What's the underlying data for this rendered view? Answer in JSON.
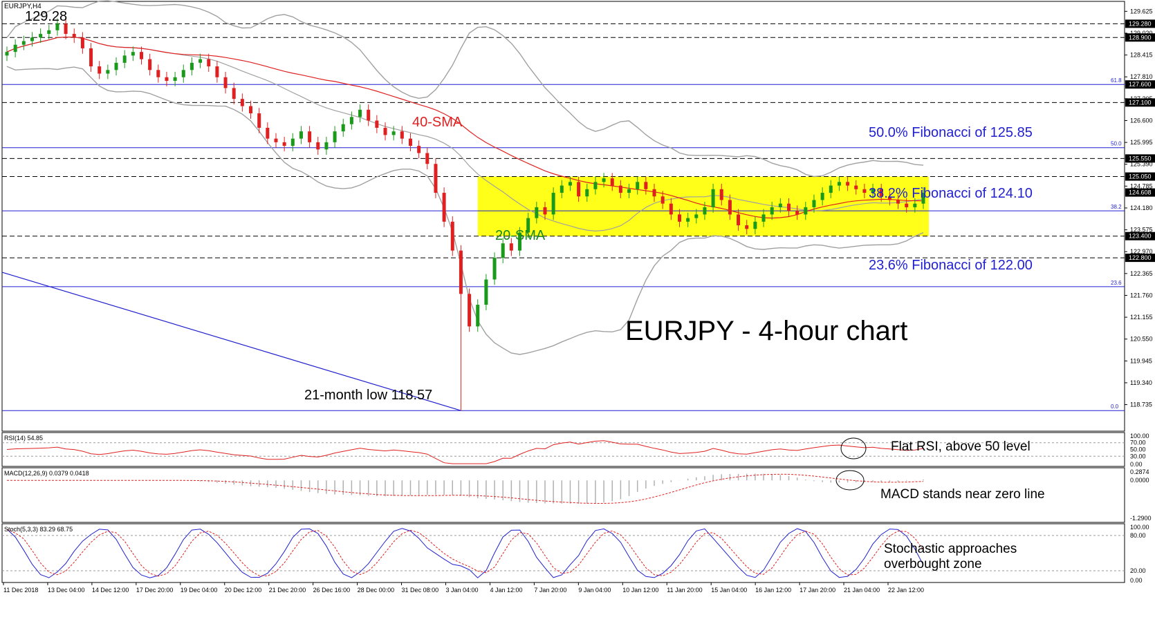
{
  "chart_data": {
    "type": "candlestick",
    "symbol_label": "EURJPY,H4",
    "title": "EURJPY - 4-hour chart",
    "price_axis": {
      "ylim": [
        118.0,
        129.9
      ],
      "ticks": [
        "129.625",
        "129.020",
        "128.415",
        "127.810",
        "127.205",
        "126.600",
        "125.995",
        "125.390",
        "124.785",
        "124.180",
        "123.575",
        "122.970",
        "122.365",
        "121.760",
        "121.155",
        "120.550",
        "119.945",
        "119.340",
        "118.735"
      ]
    },
    "x_axis_labels": [
      "11 Dec 2018",
      "13 Dec 04:00",
      "14 Dec 12:00",
      "17 Dec 20:00",
      "19 Dec 04:00",
      "20 Dec 12:00",
      "21 Dec 20:00",
      "26 Dec 16:00",
      "28 Dec 00:00",
      "31 Dec 08:00",
      "3 Jan 04:00",
      "4 Jan 12:00",
      "7 Jan 20:00",
      "9 Jan 04:00",
      "10 Jan 12:00",
      "11 Jan 20:00",
      "15 Jan 04:00",
      "16 Jan 12:00",
      "17 Jan 20:00",
      "21 Jan 04:00",
      "22 Jan 12:00"
    ],
    "horizontal_levels": [
      {
        "price": 129.28,
        "label": "129.280",
        "style": "dash"
      },
      {
        "price": 128.9,
        "label": "128.900",
        "style": "dash"
      },
      {
        "price": 127.6,
        "label": "127.600",
        "style": "solid",
        "fib": "61.8"
      },
      {
        "price": 127.1,
        "label": "127.100",
        "style": "dash"
      },
      {
        "price": 125.85,
        "label": "",
        "style": "solid",
        "fib": "50.0"
      },
      {
        "price": 125.55,
        "label": "125.550",
        "style": "dash"
      },
      {
        "price": 125.05,
        "label": "125.050",
        "style": "dash"
      },
      {
        "price": 124.1,
        "label": "",
        "style": "solid",
        "fib": "38.2"
      },
      {
        "price": 123.4,
        "label": "123.400",
        "style": "dash"
      },
      {
        "price": 122.8,
        "label": "122.800",
        "style": "dash"
      },
      {
        "price": 122.0,
        "label": "",
        "style": "solid",
        "fib": "23.6"
      },
      {
        "price": 118.57,
        "label": "",
        "style": "solid",
        "fib": "0.0"
      }
    ],
    "current_price": {
      "value": 124.608,
      "label": "124.608"
    },
    "range_box": {
      "x_start": "4 Jan 00:00",
      "x_end": "22 Jan 20:00",
      "high": 125.05,
      "low": 123.4,
      "color": "#ffff00"
    },
    "annotations": {
      "high": "129.28",
      "low": "21-month low 118.57",
      "sma40": "40-SMA",
      "sma20": "20-SMA",
      "fib50": "50.0% Fibonacci of 125.85",
      "fib382": "38.2% Fibonacci of 124.10",
      "fib236": "23.6% Fibonacci of 122.00"
    },
    "close_series": [
      128.5,
      128.7,
      128.8,
      128.9,
      129.0,
      129.1,
      129.28,
      129.0,
      128.9,
      128.6,
      128.1,
      127.9,
      128.0,
      128.2,
      128.4,
      128.5,
      128.3,
      128.0,
      127.8,
      127.7,
      127.8,
      128.0,
      128.2,
      128.3,
      128.1,
      127.8,
      127.5,
      127.2,
      127.0,
      126.8,
      126.4,
      126.1,
      126.0,
      125.9,
      126.1,
      126.3,
      126.0,
      125.8,
      126.0,
      126.3,
      126.5,
      126.7,
      126.9,
      126.6,
      126.4,
      126.2,
      126.3,
      126.1,
      125.9,
      125.7,
      125.4,
      124.6,
      123.8,
      123.0,
      121.8,
      120.9,
      121.5,
      122.2,
      122.8,
      123.2,
      123.0,
      123.5,
      123.9,
      124.2,
      124.0,
      124.6,
      124.8,
      124.9,
      124.5,
      124.7,
      124.9,
      125.0,
      124.8,
      124.6,
      124.7,
      124.9,
      124.7,
      124.5,
      124.3,
      124.0,
      123.8,
      123.9,
      124.0,
      124.2,
      124.7,
      124.4,
      124.0,
      123.7,
      123.6,
      123.8,
      124.0,
      124.2,
      124.3,
      124.1,
      124.0,
      124.2,
      124.4,
      124.6,
      124.8,
      124.9,
      124.8,
      124.7,
      124.6,
      124.7,
      124.5,
      124.4,
      124.3,
      124.2,
      124.3,
      124.6
    ]
  },
  "rsi_panel": {
    "label": "RSI(14) 54.85",
    "ticks": [
      "100.00",
      "70.00",
      "50.00",
      "30.00",
      "0.00"
    ],
    "annotation": "Flat RSI, above 50 level"
  },
  "macd_panel": {
    "label": "MACD(12,26,9) 0.0379 0.0418",
    "ticks": [
      "0.2874",
      "0.0000",
      "-1.2900"
    ],
    "annotation": "MACD stands near zero line"
  },
  "stoch_panel": {
    "label": "Stoch(5,3,3) 83.29 68.75",
    "ticks": [
      "100.00",
      "80.00",
      "20.00",
      "0.00"
    ],
    "annotation_line1": "Stochastic approaches",
    "annotation_line2": "overbought zone"
  }
}
